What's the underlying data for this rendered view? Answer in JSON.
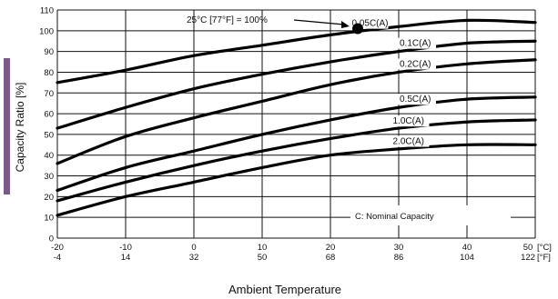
{
  "colors": {
    "curve": "#000000",
    "grid": "#111111",
    "accent_bar": "#7a5a8a",
    "background": "#ffffff"
  },
  "chart_data": {
    "type": "line",
    "ylabel": "Capacity Ratio [%]",
    "xlabel": "Ambient Temperature",
    "ylim": [
      0,
      110
    ],
    "xlim": [
      -20,
      50
    ],
    "grid": true,
    "x_ticks_c": [
      "-20",
      "-10",
      "0",
      "10",
      "20",
      "30",
      "40",
      "50"
    ],
    "x_ticks_f": [
      "-4",
      "14",
      "32",
      "50",
      "68",
      "86",
      "104",
      "122"
    ],
    "x_unit_c": "[°C]",
    "x_unit_f": "[°F]",
    "y_ticks": [
      "0",
      "10",
      "20",
      "30",
      "40",
      "50",
      "60",
      "70",
      "80",
      "90",
      "100",
      "110"
    ],
    "annotation": {
      "text": "25°C [77°F] = 100%",
      "point": {
        "x": 24,
        "y": 101
      }
    },
    "note": "C: Nominal Capacity",
    "series": [
      {
        "name": "0.05C(A)",
        "x": [
          -20,
          -10,
          0,
          10,
          20,
          30,
          40,
          50
        ],
        "values": [
          75,
          81,
          88,
          93,
          98,
          102,
          105,
          104
        ]
      },
      {
        "name": "0.1C(A)",
        "x": [
          -20,
          -10,
          0,
          10,
          20,
          30,
          40,
          50
        ],
        "values": [
          53,
          63,
          72,
          79,
          85,
          90,
          94,
          95
        ]
      },
      {
        "name": "0.2C(A)",
        "x": [
          -20,
          -10,
          0,
          10,
          20,
          30,
          40,
          50
        ],
        "values": [
          36,
          49,
          58,
          66,
          74,
          80,
          84,
          86
        ]
      },
      {
        "name": "0.5C(A)",
        "x": [
          -20,
          -10,
          0,
          10,
          20,
          30,
          40,
          50
        ],
        "values": [
          23,
          34,
          42,
          50,
          57,
          63,
          67,
          68
        ]
      },
      {
        "name": "1.0C(A)",
        "x": [
          -20,
          -10,
          0,
          10,
          20,
          30,
          40,
          50
        ],
        "values": [
          18,
          27,
          35,
          42,
          48,
          53,
          56,
          57
        ]
      },
      {
        "name": "2.0C(A)",
        "x": [
          -20,
          -10,
          0,
          10,
          20,
          30,
          40,
          50
        ],
        "values": [
          11,
          20,
          27,
          34,
          40,
          43,
          45,
          45
        ]
      }
    ]
  }
}
